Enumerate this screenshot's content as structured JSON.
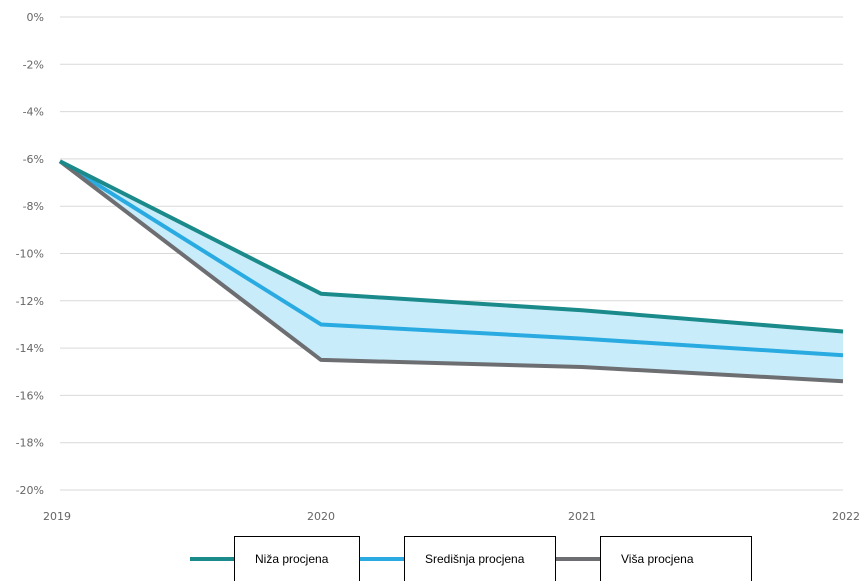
{
  "chart_data": {
    "type": "line",
    "x": [
      "2019",
      "2020",
      "2021",
      "2022"
    ],
    "yticks": [
      "0%",
      "-2%",
      "-4%",
      "-6%",
      "-8%",
      "-10%",
      "-12%",
      "-14%",
      "-16%",
      "-18%",
      "-20%"
    ],
    "ylim": [
      -20,
      0
    ],
    "grid": true,
    "band": {
      "between": [
        "Niža procjena",
        "Viša procjena"
      ],
      "color": "#c9ecfa"
    },
    "series": [
      {
        "name": "Niža procjena",
        "color": "#1a8a8a",
        "values": [
          -6.1,
          -11.7,
          -12.4,
          -13.3
        ]
      },
      {
        "name": "Središnja procjena",
        "color": "#29abe2",
        "values": [
          -6.1,
          -13.0,
          -13.6,
          -14.3
        ]
      },
      {
        "name": "Viša procjena",
        "color": "#6d6e71",
        "values": [
          -6.1,
          -14.5,
          -14.8,
          -15.4
        ]
      }
    ],
    "legend_position": "bottom"
  }
}
